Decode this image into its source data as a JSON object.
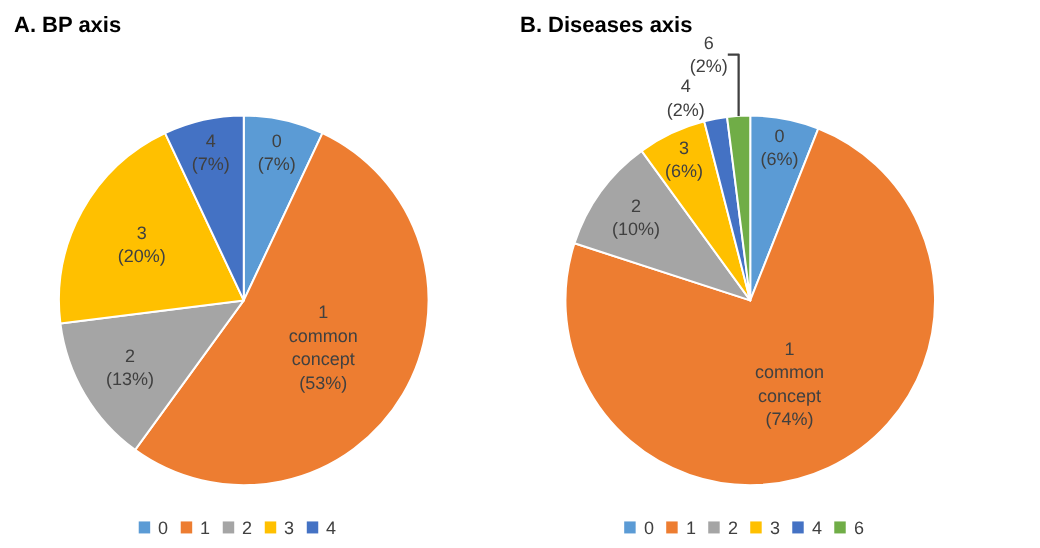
{
  "chart_data": [
    {
      "type": "pie",
      "title": "A. BP axis",
      "categories": [
        "0",
        "1",
        "2",
        "3",
        "4"
      ],
      "values": [
        7,
        53,
        13,
        20,
        7
      ],
      "colors": [
        "#5b9bd5",
        "#ed7d31",
        "#a5a5a5",
        "#ffc000",
        "#4472c4"
      ],
      "value_labels": [
        "0 (7%)",
        "1 common concept (53%)",
        "2 (13%)",
        "3 (20%)",
        "4 (7%)"
      ],
      "legend": "bottom"
    },
    {
      "type": "pie",
      "title": "B. Diseases axis",
      "categories": [
        "0",
        "1",
        "2",
        "3",
        "4",
        "6"
      ],
      "values": [
        6,
        74,
        10,
        6,
        2,
        2
      ],
      "colors": [
        "#5b9bd5",
        "#ed7d31",
        "#a5a5a5",
        "#ffc000",
        "#4472c4",
        "#70ad47"
      ],
      "value_labels": [
        "0 (6%)",
        "1 common concept (74%)",
        "2 (10%)",
        "3 (6%)",
        "4 (2%)",
        "6 (2%)"
      ],
      "legend": "bottom"
    }
  ]
}
